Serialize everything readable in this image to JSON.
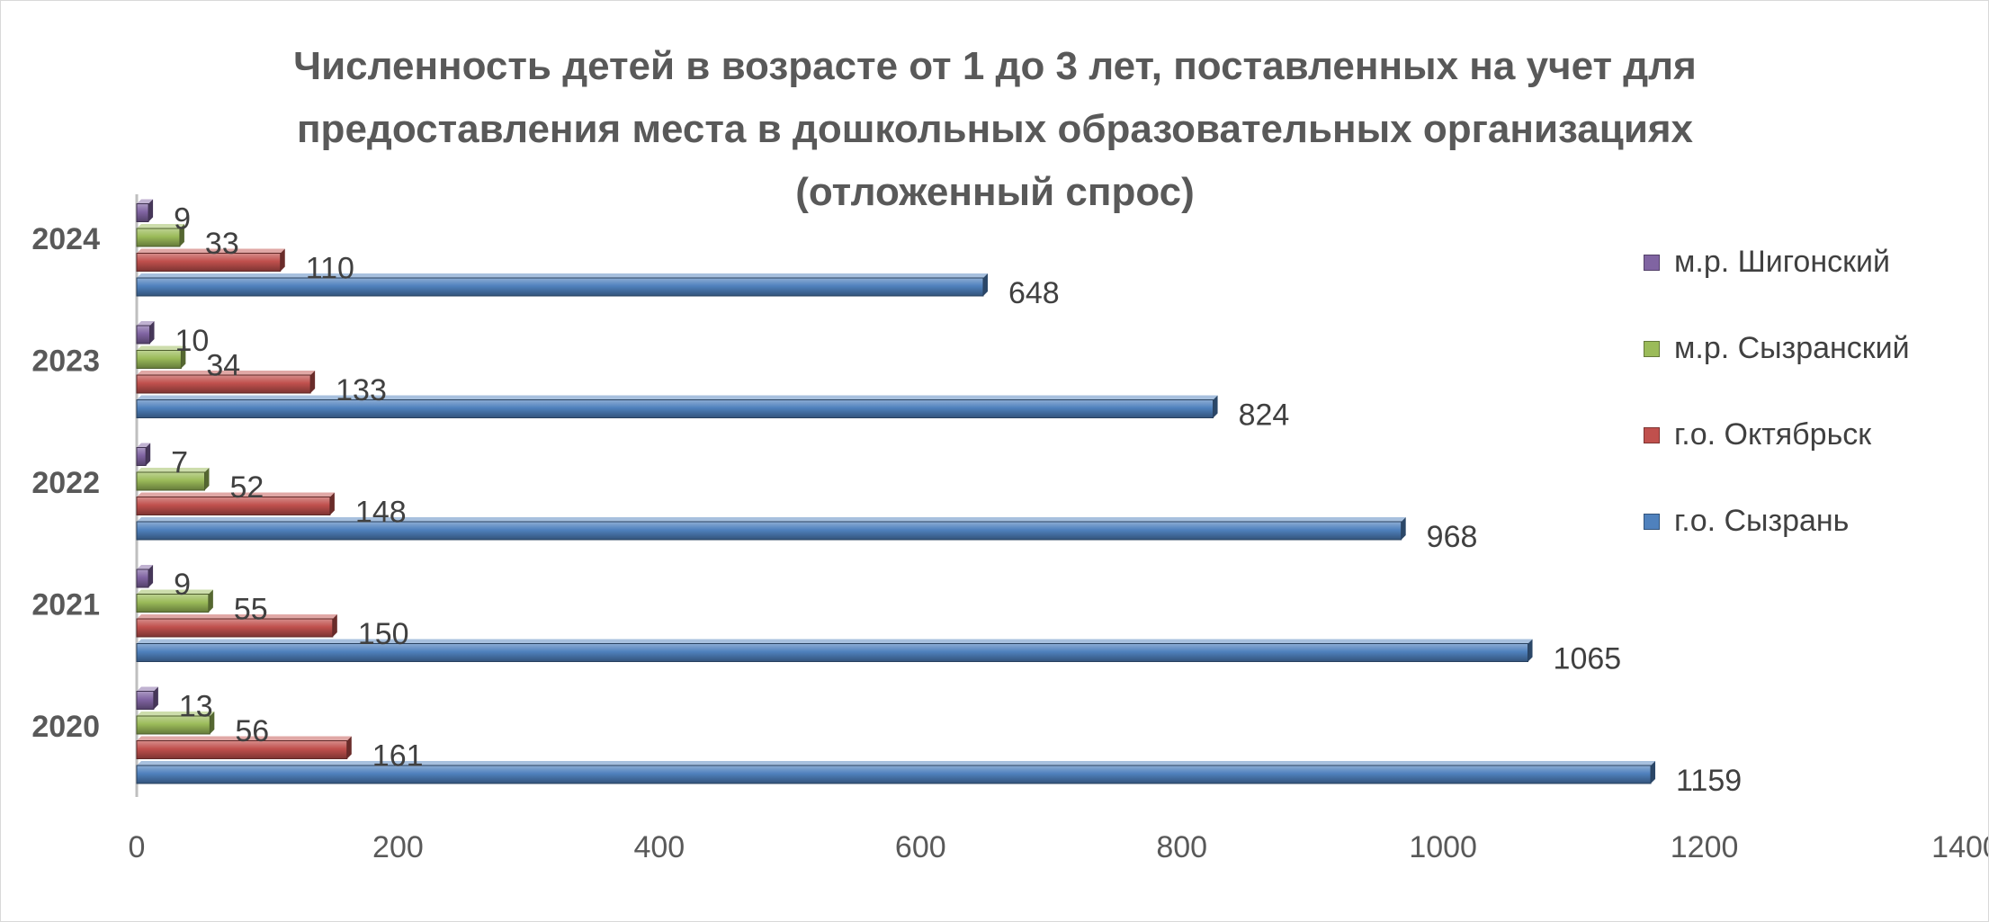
{
  "chart_data": {
    "type": "bar",
    "orientation": "horizontal",
    "title": "Численность детей в возрасте от 1 до 3 лет, поставленных на учет для предоставления места в дошкольных образовательных организациях (отложенный спрос)",
    "title_lines": [
      "Численность детей в возрасте от 1 до 3 лет, поставленных на учет для",
      "предоставления места в дошкольных образовательных организациях",
      "(отложенный спрос)"
    ],
    "categories": [
      "2020",
      "2021",
      "2022",
      "2023",
      "2024"
    ],
    "series": [
      {
        "name": "г.о. Сызрань",
        "color": "#4f81bd",
        "values": [
          1159,
          1065,
          968,
          824,
          648
        ]
      },
      {
        "name": "г.о. Октябрьск",
        "color": "#c0504d",
        "values": [
          161,
          150,
          148,
          133,
          110
        ]
      },
      {
        "name": "м.р. Сызранский",
        "color": "#9bbb59",
        "values": [
          56,
          55,
          52,
          34,
          33
        ]
      },
      {
        "name": "м.р. Шигонский",
        "color": "#8064a2",
        "values": [
          13,
          9,
          7,
          10,
          9
        ]
      }
    ],
    "xlim": [
      0,
      1400
    ],
    "x_ticks": [
      "0",
      "200",
      "400",
      "600",
      "800",
      "1000",
      "1200",
      "1400"
    ],
    "legend_order": [
      "м.р. Шигонский",
      "м.р. Сызранский",
      "г.о. Октябрьск",
      "г.о. Сызрань"
    ],
    "legend_position": "right",
    "grid": false,
    "data_labels": true
  }
}
